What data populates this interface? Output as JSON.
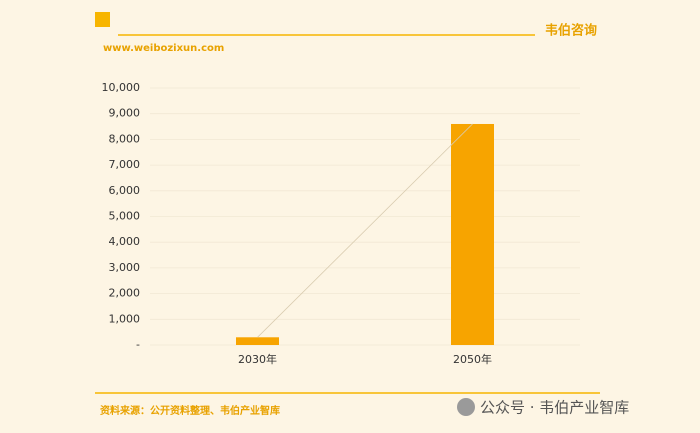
{
  "header": {
    "site": "www.weibozixun.com",
    "brand": "韦伯咨询"
  },
  "chart_data": {
    "type": "bar",
    "categories": [
      "2030年",
      "2050年"
    ],
    "values": [
      300,
      8600
    ],
    "color": "#f7a400",
    "trend_line": true,
    "ylim": [
      0,
      10000
    ],
    "yticks": [
      {
        "value": 0,
        "label": "-"
      },
      {
        "value": 1000,
        "label": "1,000"
      },
      {
        "value": 2000,
        "label": "2,000"
      },
      {
        "value": 3000,
        "label": "3,000"
      },
      {
        "value": 4000,
        "label": "4,000"
      },
      {
        "value": 5000,
        "label": "5,000"
      },
      {
        "value": 6000,
        "label": "6,000"
      },
      {
        "value": 7000,
        "label": "7,000"
      },
      {
        "value": 8000,
        "label": "8,000"
      },
      {
        "value": 9000,
        "label": "9,000"
      },
      {
        "value": 10000,
        "label": "10,000"
      }
    ],
    "grid": true
  },
  "footer": {
    "source": "资料来源：公开资料整理、韦伯产业智库",
    "watermark": "公众号 · 韦伯产业智库"
  }
}
